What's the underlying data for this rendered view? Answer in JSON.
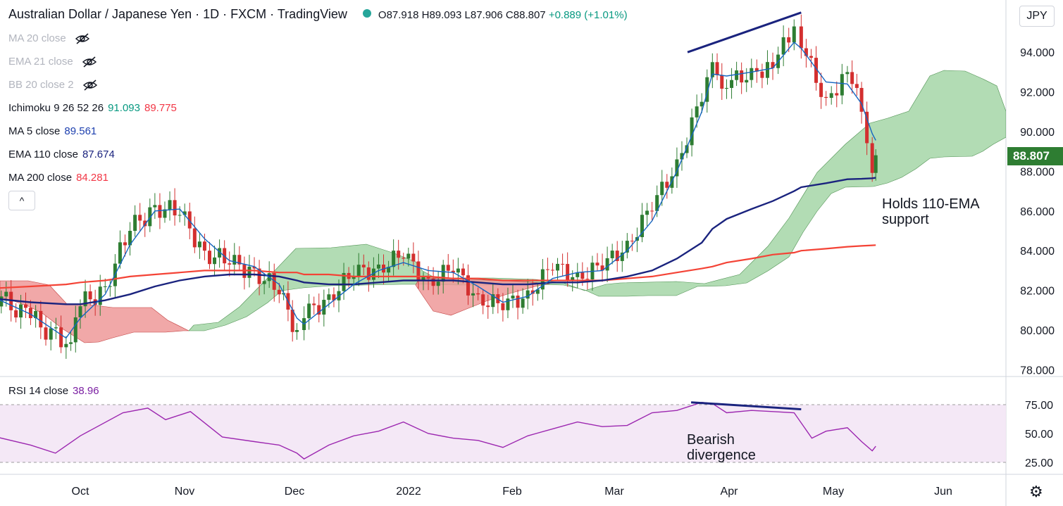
{
  "header": {
    "title": "Australian Dollar / Japanese Yen · 1D · FXCM · TradingView",
    "open": "O87.918",
    "high": "H89.093",
    "low": "L87.906",
    "close": "C88.807",
    "change": "+0.889 (+1.01%)"
  },
  "currency": "JPY",
  "indicators": [
    {
      "label": "MA 20 close",
      "hidden": true
    },
    {
      "label": "EMA 21 close",
      "hidden": true
    },
    {
      "label": "BB 20 close 2",
      "hidden": true
    },
    {
      "label": "Ichimoku 9 26 52 26",
      "v1": "91.093",
      "v1_color": "#089981",
      "v2": "89.775",
      "v2_color": "#f23645"
    },
    {
      "label": "MA 5 close",
      "v1": "89.561",
      "v1_color": "#1e40af"
    },
    {
      "label": "EMA 110 close",
      "v1": "87.674",
      "v1_color": "#1a237e"
    },
    {
      "label": "MA 200 close",
      "v1": "84.281",
      "v1_color": "#f23645"
    }
  ],
  "collapse_symbol": "^",
  "last_price": "88.807",
  "annotations": {
    "support": [
      "Holds 110-EMA",
      "support"
    ],
    "divergence": [
      "Bearish",
      "divergence"
    ]
  },
  "rsi": {
    "label": "RSI 14 close",
    "value": "38.96"
  },
  "colors": {
    "up": "#2e7d32",
    "down": "#d32f2f",
    "ma5": "#1565c0",
    "ema110": "#1a237e",
    "ma200": "#f44336",
    "cloud_bull": "#a5d6a7",
    "cloud_bear": "#ef9a9a",
    "rsi": "#9c27b0",
    "trendline": "#1a237e"
  },
  "chart_data": {
    "type": "line",
    "title": "Australian Dollar / Japanese Yen · 1D · FXCM · TradingView",
    "xlabel": "",
    "ylabel": "",
    "x_ticks": [
      "Oct",
      "Nov",
      "Dec",
      "2022",
      "Feb",
      "Mar",
      "Apr",
      "May",
      "Jun"
    ],
    "y_ticks": [
      "78.000",
      "80.000",
      "82.000",
      "84.000",
      "86.000",
      "88.000",
      "90.000",
      "92.000",
      "94.000"
    ],
    "ylim": [
      77.5,
      96
    ],
    "rsi_ticks": [
      "25.00",
      "50.00",
      "75.00"
    ],
    "rsi_lim": [
      20,
      80
    ],
    "series": [
      {
        "name": "MA 5 close",
        "key": "ma5"
      },
      {
        "name": "EMA 110 close",
        "key": "ema110"
      },
      {
        "name": "MA 200 close",
        "key": "ma200"
      },
      {
        "name": "RSI 14 close",
        "key": "rsi"
      }
    ],
    "price_x": [
      "2021-09-06",
      "2021-09-17",
      "2021-09-27",
      "2021-10-01",
      "2021-10-08",
      "2021-10-15",
      "2021-10-22",
      "2021-10-29",
      "2021-11-05",
      "2021-11-12",
      "2021-11-19",
      "2021-11-26",
      "2021-12-01",
      "2021-12-03",
      "2021-12-10",
      "2021-12-17",
      "2021-12-24",
      "2021-12-31",
      "2022-01-07",
      "2022-01-14",
      "2022-01-21",
      "2022-01-28",
      "2022-02-04",
      "2022-02-11",
      "2022-02-18",
      "2022-02-25",
      "2022-03-04",
      "2022-03-11",
      "2022-03-18",
      "2022-03-25",
      "2022-03-28",
      "2022-04-01",
      "2022-04-08",
      "2022-04-14",
      "2022-04-20",
      "2022-04-22",
      "2022-04-29",
      "2022-05-05",
      "2022-05-09",
      "2022-05-12",
      "2022-05-13"
    ],
    "price_close": [
      81.9,
      80.6,
      79.3,
      81.2,
      82.2,
      85.0,
      86.3,
      85.8,
      84.0,
      83.3,
      83.1,
      81.8,
      80.0,
      80.6,
      81.8,
      82.7,
      83.3,
      83.6,
      82.6,
      82.9,
      81.8,
      81.0,
      82.0,
      83.0,
      82.9,
      83.0,
      84.5,
      86.0,
      88.6,
      91.5,
      93.5,
      92.2,
      93.2,
      93.2,
      95.3,
      94.2,
      91.7,
      93.0,
      91.0,
      87.918,
      88.807
    ],
    "ma5": [
      81.7,
      80.8,
      79.6,
      80.6,
      81.8,
      84.3,
      86.0,
      86.1,
      84.6,
      83.5,
      83.2,
      82.3,
      80.6,
      80.3,
      81.3,
      82.3,
      83.0,
      83.4,
      83.0,
      82.9,
      82.2,
      81.4,
      81.7,
      82.6,
      82.9,
      83.0,
      84.0,
      85.5,
      88.0,
      91.0,
      92.9,
      92.8,
      93.0,
      93.2,
      94.5,
      94.2,
      92.5,
      92.4,
      91.4,
      89.9,
      89.561
    ],
    "ema110": [
      81.6,
      81.4,
      81.3,
      81.3,
      81.5,
      81.8,
      82.2,
      82.5,
      82.7,
      82.8,
      82.8,
      82.7,
      82.5,
      82.4,
      82.3,
      82.3,
      82.4,
      82.5,
      82.5,
      82.5,
      82.4,
      82.3,
      82.3,
      82.4,
      82.4,
      82.5,
      82.7,
      83.0,
      83.6,
      84.4,
      85.1,
      85.6,
      86.1,
      86.5,
      87.0,
      87.2,
      87.4,
      87.6,
      87.62,
      87.65,
      87.674
    ],
    "ma200": [
      82.1,
      82.2,
      82.3,
      82.4,
      82.5,
      82.7,
      82.8,
      82.9,
      83.0,
      83.0,
      83.0,
      82.9,
      82.9,
      82.8,
      82.8,
      82.7,
      82.7,
      82.7,
      82.7,
      82.6,
      82.6,
      82.5,
      82.5,
      82.5,
      82.5,
      82.5,
      82.6,
      82.7,
      82.9,
      83.1,
      83.2,
      83.4,
      83.6,
      83.8,
      83.9,
      84.0,
      84.1,
      84.2,
      84.24,
      84.27,
      84.281
    ],
    "rsi_x": [
      "2021-09-06",
      "2021-09-17",
      "2021-09-24",
      "2021-10-01",
      "2021-10-13",
      "2021-10-20",
      "2021-10-25",
      "2021-11-01",
      "2021-11-10",
      "2021-11-19",
      "2021-11-26",
      "2021-12-01",
      "2021-12-03",
      "2021-12-10",
      "2021-12-17",
      "2021-12-24",
      "2021-12-31",
      "2022-01-07",
      "2022-01-14",
      "2022-01-21",
      "2022-01-28",
      "2022-02-04",
      "2022-02-11",
      "2022-02-18",
      "2022-02-25",
      "2022-03-04",
      "2022-03-11",
      "2022-03-18",
      "2022-03-25",
      "2022-03-28",
      "2022-04-01",
      "2022-04-08",
      "2022-04-14",
      "2022-04-20",
      "2022-04-25",
      "2022-04-29",
      "2022-05-05",
      "2022-05-09",
      "2022-05-12",
      "2022-05-13"
    ],
    "rsi_values": [
      48,
      40,
      33,
      48,
      68,
      72,
      62,
      69,
      47,
      43,
      40,
      33,
      28,
      40,
      48,
      52,
      60,
      50,
      46,
      44,
      38,
      48,
      54,
      60,
      56,
      57,
      68,
      70,
      77,
      76,
      68,
      70,
      69,
      68,
      46,
      52,
      55,
      43,
      35,
      38.96
    ],
    "trend_lines": [
      {
        "pane": "price",
        "from": [
          "2022-03-21",
          94.0
        ],
        "to": [
          "2022-04-22",
          96.0
        ]
      },
      {
        "pane": "rsi",
        "from": [
          "2022-03-22",
          77.0
        ],
        "to": [
          "2022-04-22",
          71.0
        ]
      }
    ]
  }
}
